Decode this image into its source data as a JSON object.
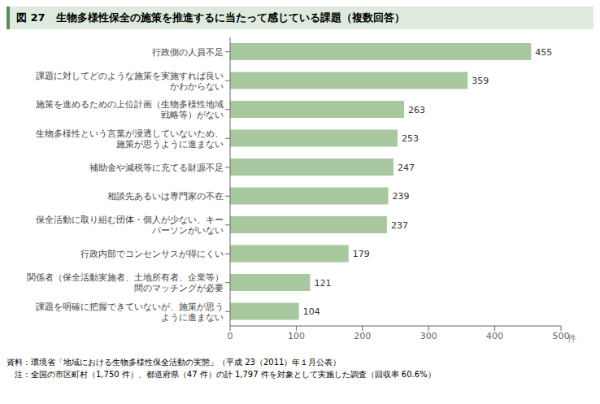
{
  "chart_data": {
    "type": "bar",
    "orientation": "horizontal",
    "title": "図 27　生物多様性保全の施策を推進するに当たって感じている課題（複数回答）",
    "categories": [
      "行政側の人員不足",
      "課題に対してどのような施策を実施すれば良い\nかわからない",
      "施策を進めるための上位計画（生物多様性地域\n戦略等）がない",
      "生物多様性という言葉が浸透していないため、\n施策が思うように進まない",
      "補助金や減税等に充てる財源不足",
      "相談先あるいは専門家の不在",
      "保全活動に取り組む団体・個人が少ない、キー\nパーソンがいない",
      "行政内部でコンセンサスが得にくい",
      "関係者（保全活動実施者、土地所有者、企業等）\n間のマッチングが必要",
      "課題を明確に把握できていないが、施策が思う\nように進まない"
    ],
    "values": [
      455,
      359,
      263,
      253,
      247,
      239,
      237,
      179,
      121,
      104
    ],
    "color": "#a8c8a0",
    "xlim": [
      0,
      500
    ],
    "xticks": [
      0,
      100,
      200,
      300,
      400,
      500
    ],
    "xlabel": "件",
    "data_labels": true,
    "grid": false,
    "annotations": [
      "資料：環境省「地域における生物多様性保全活動の実態」（平成 23（2011）年１月公表）",
      "　注：全国の市区町村（1,750 件）、都道府県（47 件）の計 1,797 件を対象として実施した調査（回収率 60.6%）"
    ]
  }
}
